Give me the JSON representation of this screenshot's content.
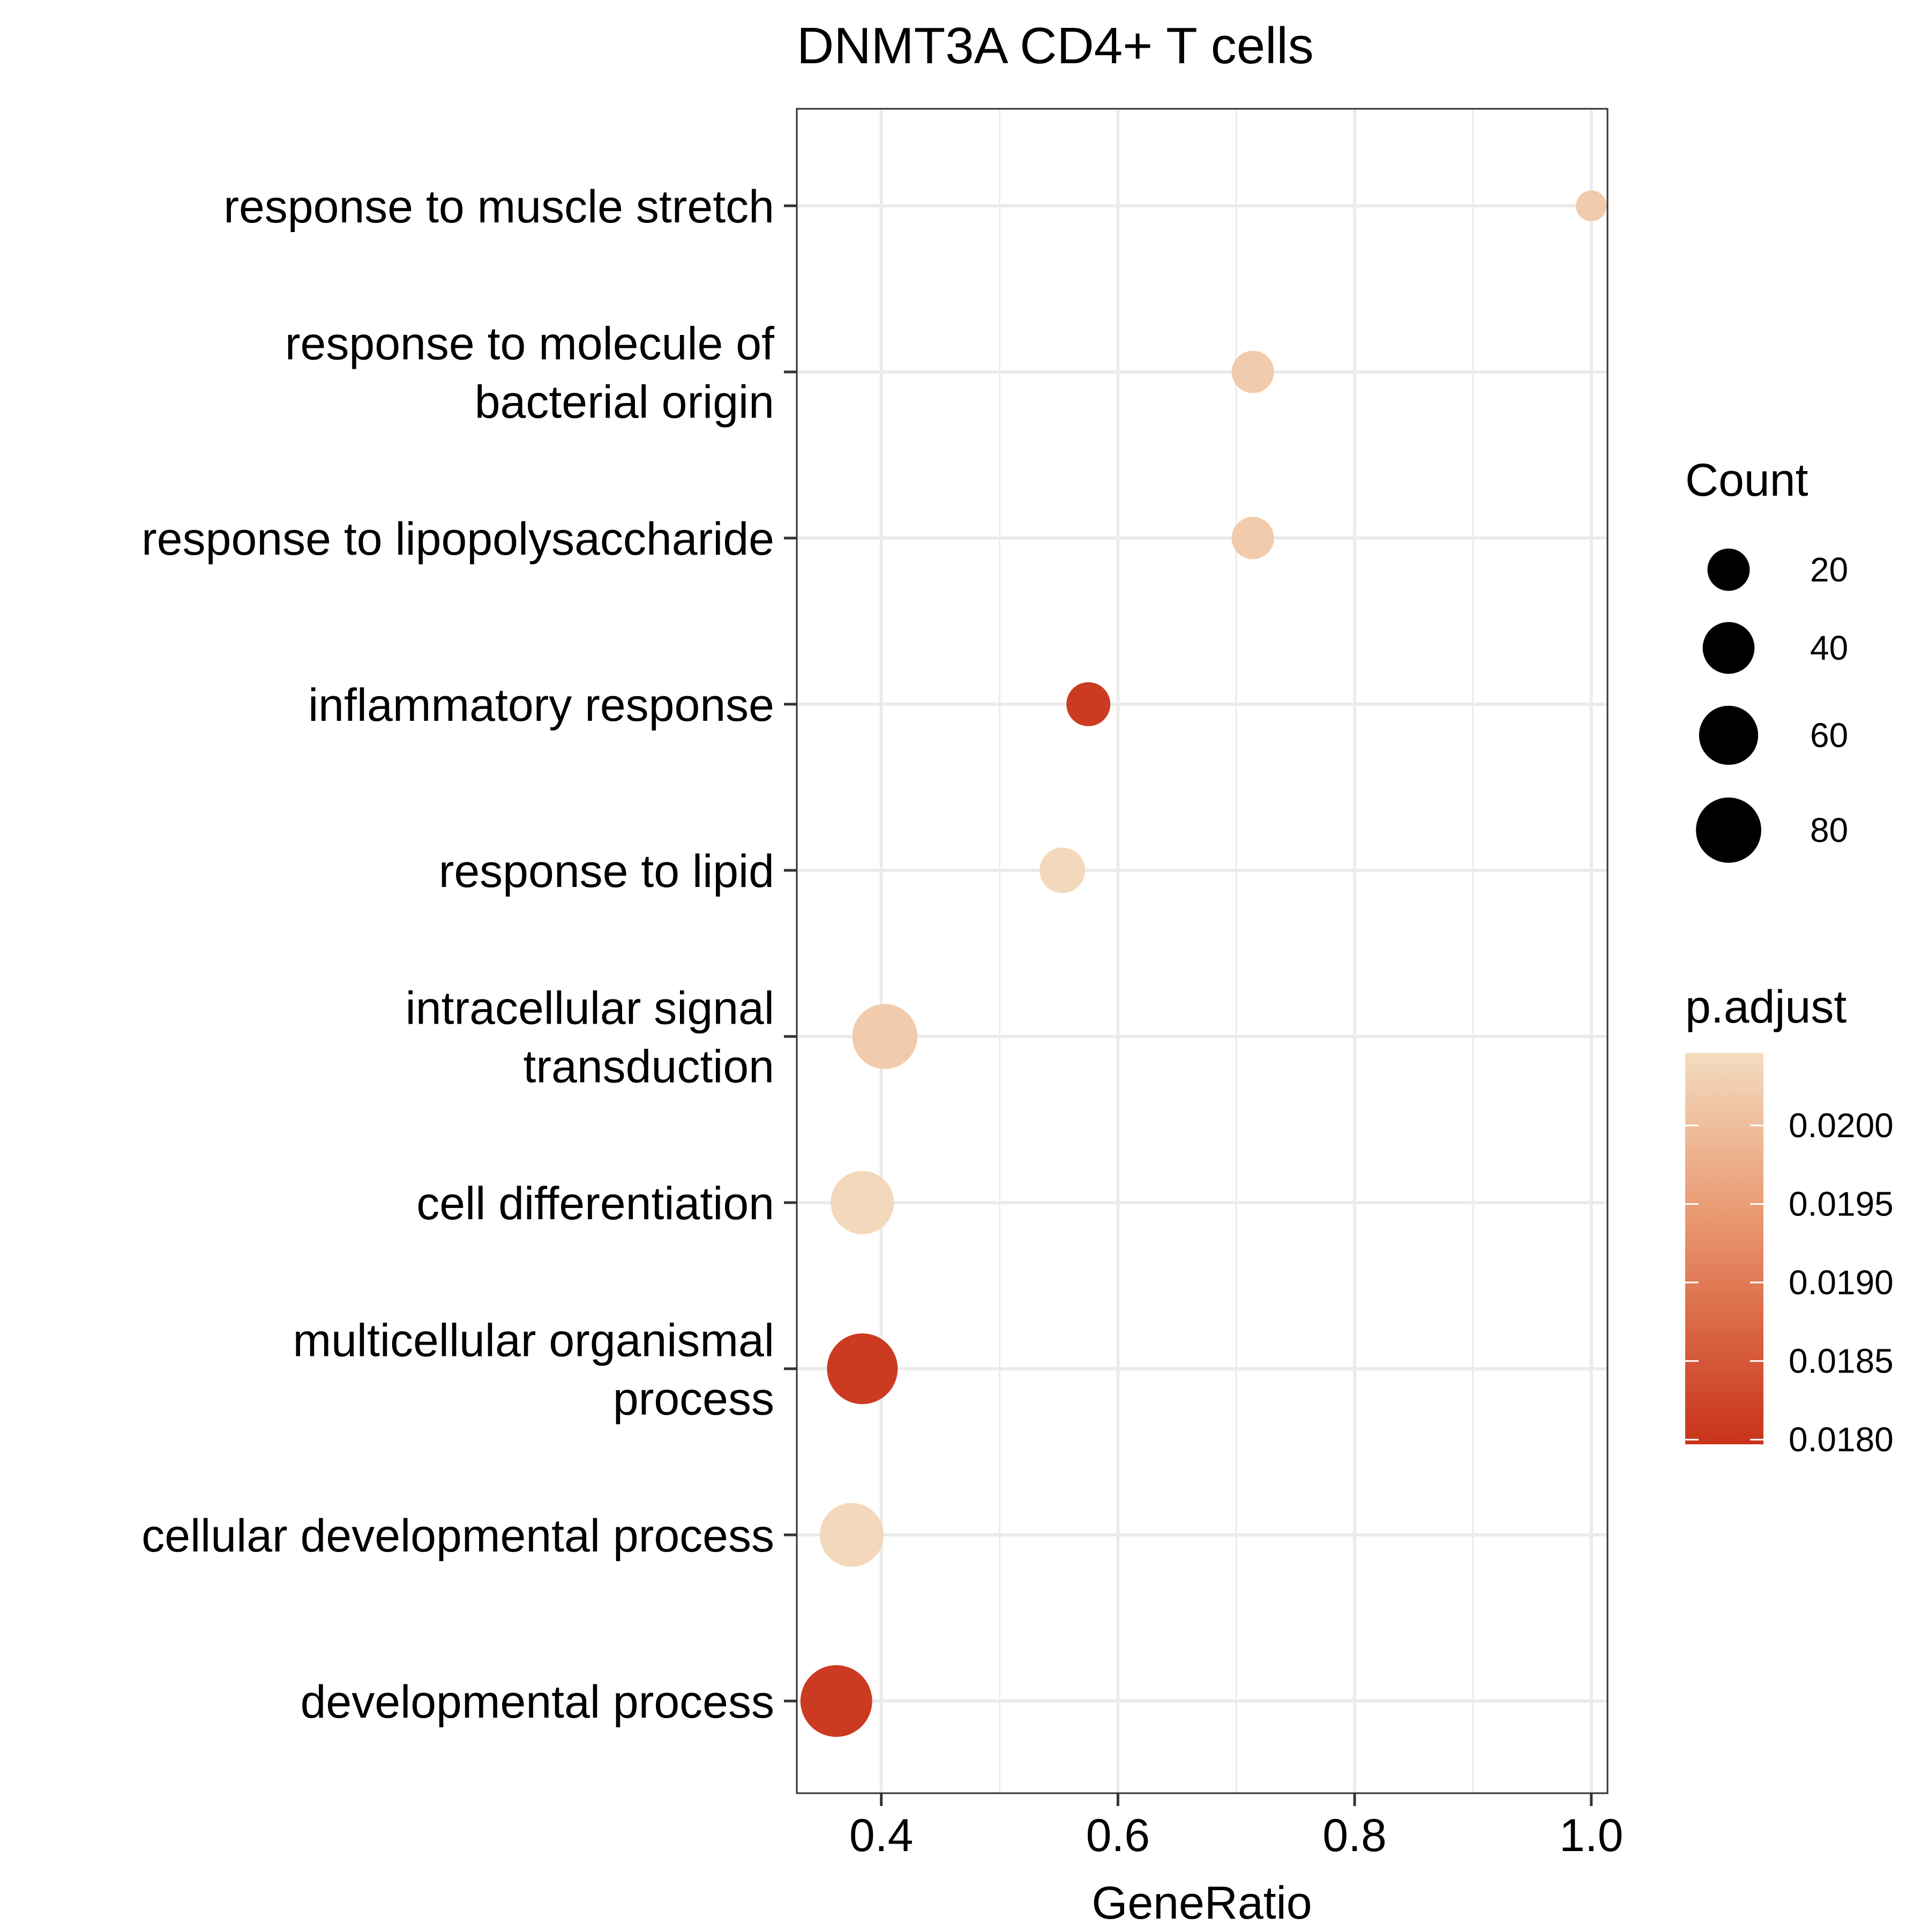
{
  "chart_data": {
    "type": "scatter",
    "title": "DNMT3A CD4+ T cells",
    "xlabel": "GeneRatio",
    "ylabel": "",
    "xlim": [
      0.3286,
      1.0137
    ],
    "x_ticks": [
      {
        "value": 0.4,
        "label": "0.4"
      },
      {
        "value": 0.6,
        "label": "0.6"
      },
      {
        "value": 0.8,
        "label": "0.8"
      },
      {
        "value": 1.0,
        "label": "1.0"
      }
    ],
    "x_minor_gridlines": [
      0.5,
      0.7,
      0.9
    ],
    "grid": true,
    "categories": [
      {
        "lines": [
          "response to muscle stretch"
        ]
      },
      {
        "lines": [
          "response to molecule of",
          "bacterial origin"
        ]
      },
      {
        "lines": [
          "response to lipopolysaccharide"
        ]
      },
      {
        "lines": [
          "inflammatory response"
        ]
      },
      {
        "lines": [
          "response to lipid"
        ]
      },
      {
        "lines": [
          "intracellular signal",
          "transduction"
        ]
      },
      {
        "lines": [
          "cell differentiation"
        ]
      },
      {
        "lines": [
          "multicellular organismal",
          "process"
        ]
      },
      {
        "lines": [
          "cellular developmental process"
        ]
      },
      {
        "lines": [
          "developmental process"
        ]
      }
    ],
    "points": [
      {
        "generatio": 1.0,
        "count": 5,
        "p_adjust": 0.0202
      },
      {
        "generatio": 0.714,
        "count": 20,
        "p_adjust": 0.0202
      },
      {
        "generatio": 0.714,
        "count": 20,
        "p_adjust": 0.0202
      },
      {
        "generatio": 0.575,
        "count": 23,
        "p_adjust": 0.0181
      },
      {
        "generatio": 0.553,
        "count": 26,
        "p_adjust": 0.0204
      },
      {
        "generatio": 0.403,
        "count": 79,
        "p_adjust": 0.0202
      },
      {
        "generatio": 0.384,
        "count": 73,
        "p_adjust": 0.0204
      },
      {
        "generatio": 0.384,
        "count": 100,
        "p_adjust": 0.0181
      },
      {
        "generatio": 0.375,
        "count": 75,
        "p_adjust": 0.0204
      },
      {
        "generatio": 0.362,
        "count": 104,
        "p_adjust": 0.0181
      }
    ],
    "size_legend": {
      "title": "Count",
      "entries": [
        {
          "value": 20,
          "label": "20"
        },
        {
          "value": 40,
          "label": "40"
        },
        {
          "value": 60,
          "label": "60"
        },
        {
          "value": 80,
          "label": "80"
        }
      ]
    },
    "color_legend": {
      "title": "p.adjust",
      "range": [
        0.01797,
        0.02046
      ],
      "low_color": "#c8321a",
      "mid_color": "#e8936a",
      "high_color": "#f4dcc0",
      "ticks": [
        {
          "value": 0.018,
          "label": "0.0180"
        },
        {
          "value": 0.0185,
          "label": "0.0185"
        },
        {
          "value": 0.019,
          "label": "0.0190"
        },
        {
          "value": 0.0195,
          "label": "0.0195"
        },
        {
          "value": 0.02,
          "label": "0.0200"
        }
      ]
    },
    "colors": {
      "grid_major": "#ebebeb",
      "grid_minor": "#ebebeb",
      "panel_border": "#333333",
      "axis_text": "#000000",
      "legend_point": "#000000"
    }
  }
}
